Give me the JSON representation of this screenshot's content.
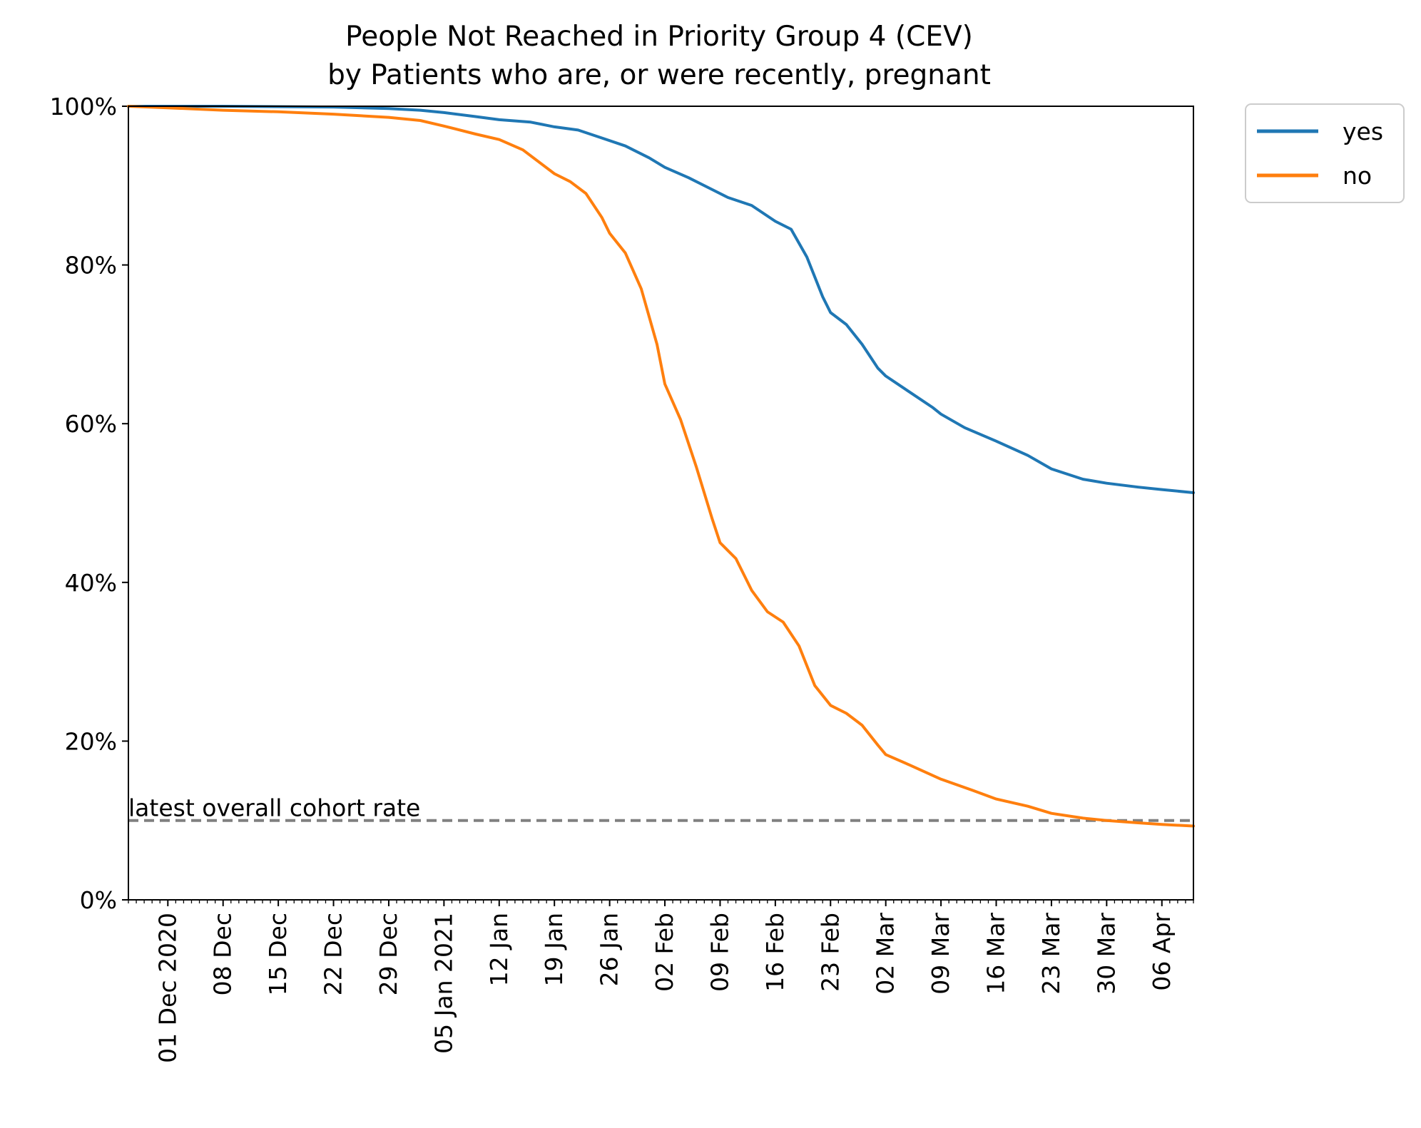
{
  "chart_data": {
    "type": "line",
    "title": "People Not Reached in Priority Group 4 (CEV)",
    "subtitle": "by Patients who are, or were recently, pregnant",
    "xlabel": "",
    "ylabel": "",
    "xlim": [
      "2020-11-26",
      "2021-04-10"
    ],
    "ylim": [
      0,
      100
    ],
    "y_unit": "%",
    "y_ticks": [
      0,
      20,
      40,
      60,
      80,
      100
    ],
    "y_tick_labels": [
      "0%",
      "20%",
      "40%",
      "60%",
      "80%",
      "100%"
    ],
    "x_ticks": [
      "2020-12-01",
      "2020-12-08",
      "2020-12-15",
      "2020-12-22",
      "2020-12-29",
      "2021-01-05",
      "2021-01-12",
      "2021-01-19",
      "2021-01-26",
      "2021-02-02",
      "2021-02-09",
      "2021-02-16",
      "2021-02-23",
      "2021-03-02",
      "2021-03-09",
      "2021-03-16",
      "2021-03-23",
      "2021-03-30",
      "2021-04-06"
    ],
    "x_tick_labels": [
      "01 Dec 2020",
      "08 Dec",
      "15 Dec",
      "22 Dec",
      "29 Dec",
      "05 Jan 2021",
      "12 Jan",
      "19 Jan",
      "26 Jan",
      "02 Feb",
      "09 Feb",
      "16 Feb",
      "23 Feb",
      "02 Mar",
      "09 Mar",
      "16 Mar",
      "23 Mar",
      "30 Mar",
      "06 Apr"
    ],
    "grid": false,
    "legend_position": "outside-top-right",
    "reference_line": {
      "value": 10,
      "label": "latest overall cohort rate",
      "color": "#808080",
      "style": "dashed"
    },
    "series": [
      {
        "name": "yes",
        "color": "#1f77b4",
        "points": [
          [
            "2020-11-26",
            100
          ],
          [
            "2020-12-08",
            100
          ],
          [
            "2020-12-22",
            99.9
          ],
          [
            "2020-12-29",
            99.7
          ],
          [
            "2021-01-02",
            99.5
          ],
          [
            "2021-01-05",
            99.2
          ],
          [
            "2021-01-09",
            98.7
          ],
          [
            "2021-01-12",
            98.3
          ],
          [
            "2021-01-16",
            98.0
          ],
          [
            "2021-01-19",
            97.4
          ],
          [
            "2021-01-22",
            97.0
          ],
          [
            "2021-01-25",
            96.0
          ],
          [
            "2021-01-28",
            95.0
          ],
          [
            "2021-01-31",
            93.5
          ],
          [
            "2021-02-02",
            92.3
          ],
          [
            "2021-02-05",
            91.0
          ],
          [
            "2021-02-08",
            89.5
          ],
          [
            "2021-02-10",
            88.5
          ],
          [
            "2021-02-13",
            87.5
          ],
          [
            "2021-02-16",
            85.5
          ],
          [
            "2021-02-18",
            84.5
          ],
          [
            "2021-02-20",
            81.0
          ],
          [
            "2021-02-22",
            76.0
          ],
          [
            "2021-02-23",
            74.0
          ],
          [
            "2021-02-25",
            72.5
          ],
          [
            "2021-02-27",
            70.0
          ],
          [
            "2021-03-01",
            67.0
          ],
          [
            "2021-03-02",
            66.0
          ],
          [
            "2021-03-05",
            64.0
          ],
          [
            "2021-03-08",
            62.0
          ],
          [
            "2021-03-09",
            61.2
          ],
          [
            "2021-03-12",
            59.5
          ],
          [
            "2021-03-16",
            57.8
          ],
          [
            "2021-03-20",
            56.0
          ],
          [
            "2021-03-23",
            54.3
          ],
          [
            "2021-03-27",
            53.0
          ],
          [
            "2021-03-30",
            52.5
          ],
          [
            "2021-04-03",
            52.0
          ],
          [
            "2021-04-06",
            51.7
          ],
          [
            "2021-04-10",
            51.3
          ]
        ]
      },
      {
        "name": "no",
        "color": "#ff7f0e",
        "points": [
          [
            "2020-11-26",
            100
          ],
          [
            "2020-12-01",
            99.8
          ],
          [
            "2020-12-08",
            99.5
          ],
          [
            "2020-12-15",
            99.3
          ],
          [
            "2020-12-22",
            99.0
          ],
          [
            "2020-12-29",
            98.6
          ],
          [
            "2021-01-02",
            98.2
          ],
          [
            "2021-01-05",
            97.5
          ],
          [
            "2021-01-09",
            96.5
          ],
          [
            "2021-01-12",
            95.8
          ],
          [
            "2021-01-15",
            94.5
          ],
          [
            "2021-01-19",
            91.5
          ],
          [
            "2021-01-21",
            90.5
          ],
          [
            "2021-01-23",
            89.0
          ],
          [
            "2021-01-25",
            86.0
          ],
          [
            "2021-01-26",
            84.0
          ],
          [
            "2021-01-28",
            81.5
          ],
          [
            "2021-01-30",
            77.0
          ],
          [
            "2021-02-01",
            70.0
          ],
          [
            "2021-02-02",
            65.0
          ],
          [
            "2021-02-04",
            60.5
          ],
          [
            "2021-02-06",
            54.5
          ],
          [
            "2021-02-08",
            48.0
          ],
          [
            "2021-02-09",
            45.0
          ],
          [
            "2021-02-11",
            43.0
          ],
          [
            "2021-02-13",
            39.0
          ],
          [
            "2021-02-15",
            36.3
          ],
          [
            "2021-02-17",
            35.0
          ],
          [
            "2021-02-19",
            32.0
          ],
          [
            "2021-02-21",
            27.0
          ],
          [
            "2021-02-23",
            24.5
          ],
          [
            "2021-02-25",
            23.5
          ],
          [
            "2021-02-27",
            22.0
          ],
          [
            "2021-03-01",
            19.5
          ],
          [
            "2021-03-02",
            18.3
          ],
          [
            "2021-03-05",
            17.0
          ],
          [
            "2021-03-09",
            15.2
          ],
          [
            "2021-03-13",
            13.8
          ],
          [
            "2021-03-16",
            12.7
          ],
          [
            "2021-03-20",
            11.8
          ],
          [
            "2021-03-23",
            10.9
          ],
          [
            "2021-03-27",
            10.3
          ],
          [
            "2021-03-30",
            10.0
          ],
          [
            "2021-04-03",
            9.7
          ],
          [
            "2021-04-06",
            9.5
          ],
          [
            "2021-04-10",
            9.3
          ]
        ]
      }
    ]
  }
}
